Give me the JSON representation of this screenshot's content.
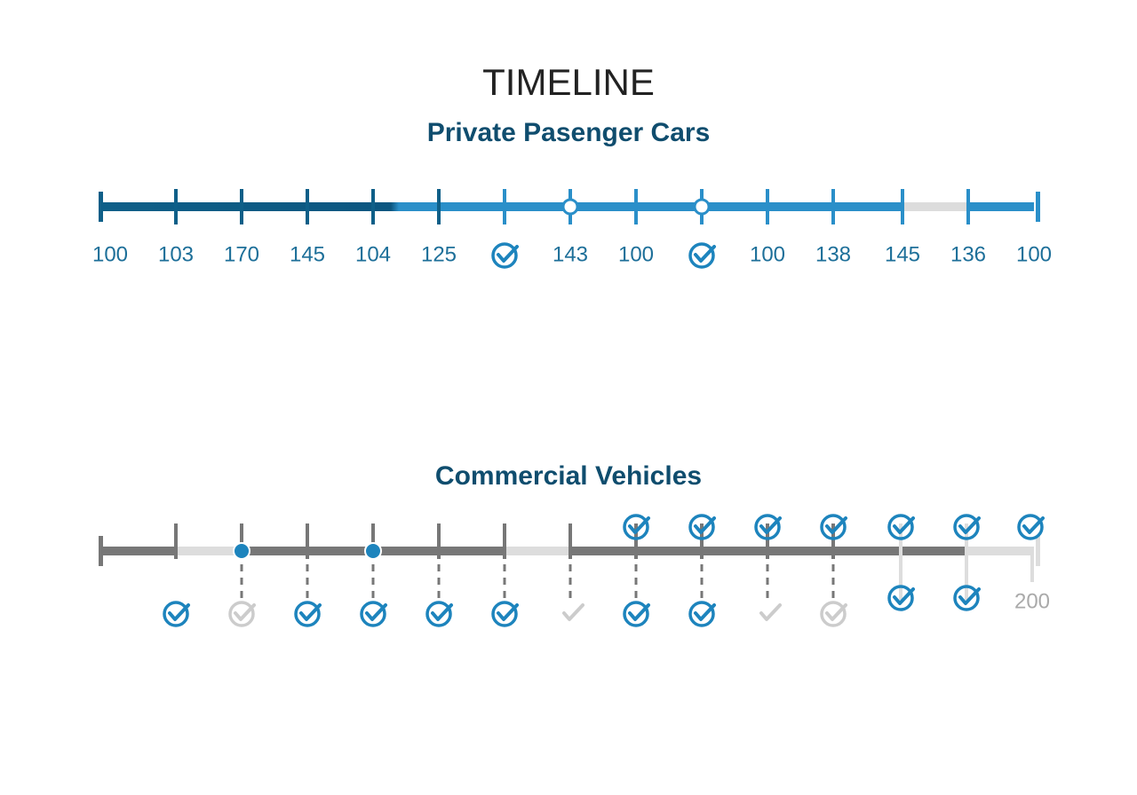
{
  "title": "TIMELINE",
  "sections": [
    {
      "title": "Private Pasenger Cars",
      "labels": [
        "100",
        "103",
        "170",
        "145",
        "104",
        "125",
        null,
        "143",
        "100",
        null,
        "100",
        "138",
        "145",
        "136",
        "100"
      ]
    },
    {
      "title": "Commercial Vehicles",
      "end_label": "200"
    }
  ]
}
